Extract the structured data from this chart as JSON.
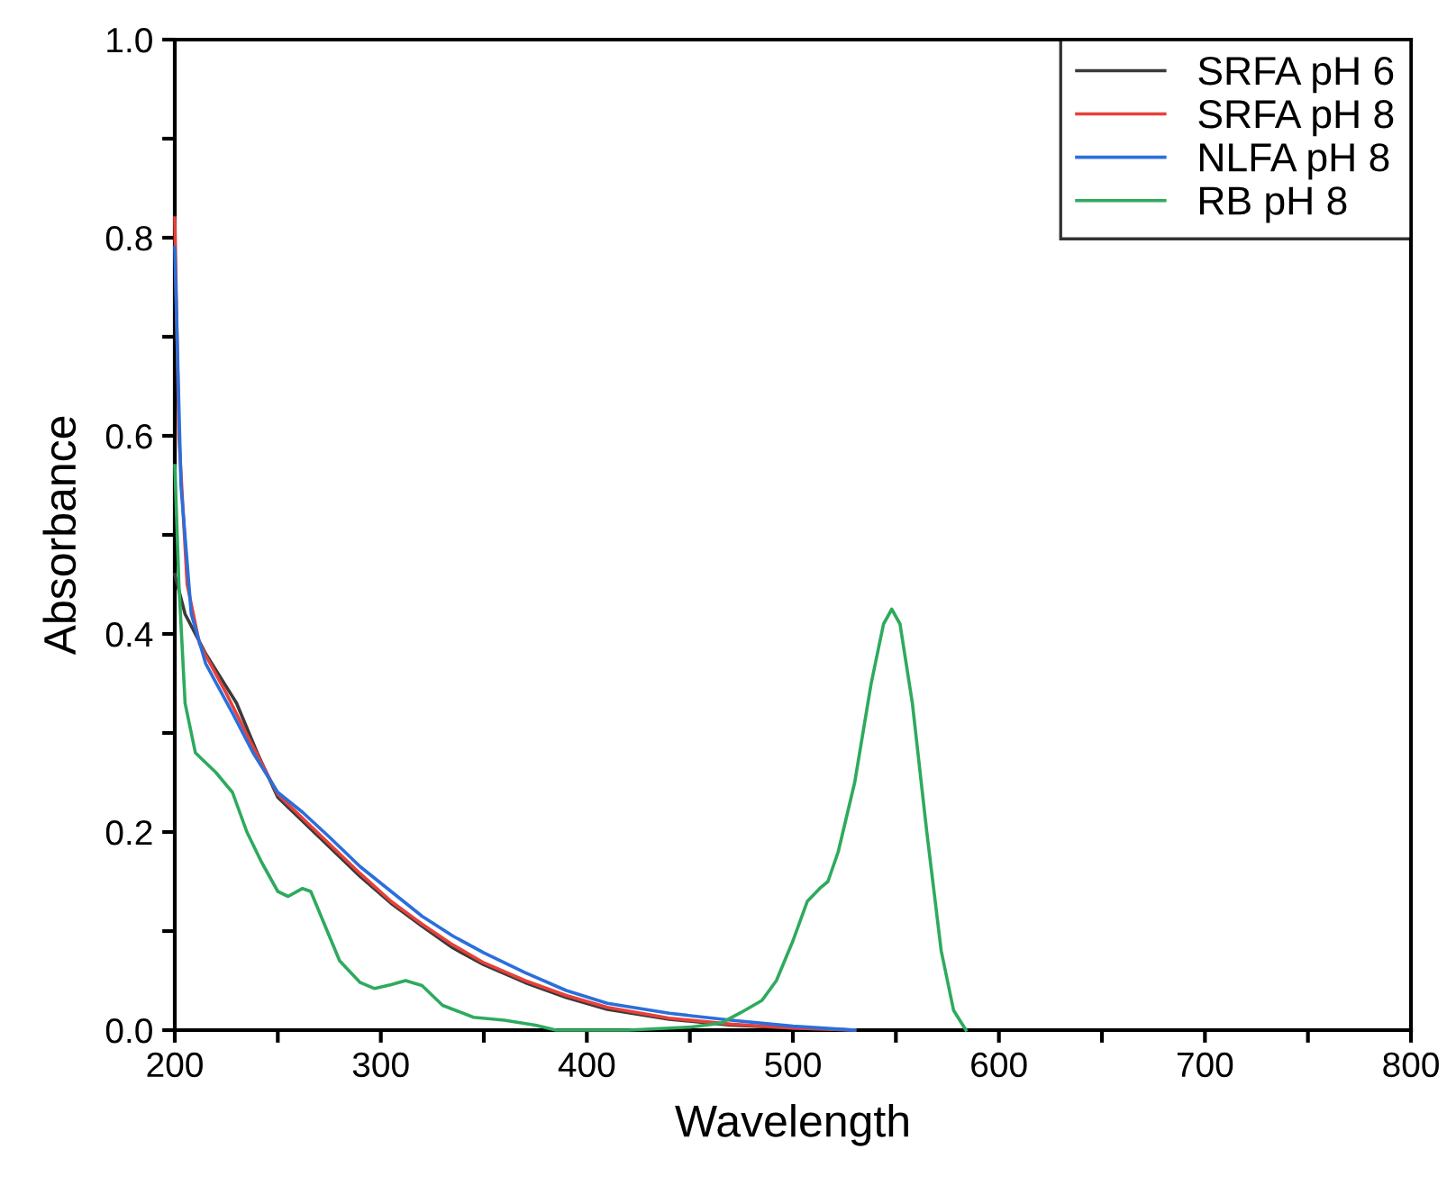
{
  "chart_data": {
    "type": "line",
    "xlabel": "Wavelength",
    "ylabel": "Absorbance",
    "xlim": [
      200,
      800
    ],
    "ylim": [
      0,
      1.0
    ],
    "xticks": [
      200,
      {
        "value": 250,
        "label": null
      },
      300,
      {
        "value": 350,
        "label": null
      },
      400,
      {
        "value": 450,
        "label": null
      },
      500,
      {
        "value": 550,
        "label": null
      },
      600,
      {
        "value": 650,
        "label": null
      },
      700,
      {
        "value": 750,
        "label": null
      },
      800
    ],
    "yticks": [
      {
        "value": 0,
        "label": "0.0"
      },
      {
        "value": 0.1,
        "label": null
      },
      0.2,
      {
        "value": 0.3,
        "label": null
      },
      0.4,
      {
        "value": 0.5,
        "label": null
      },
      0.6,
      {
        "value": 0.7,
        "label": null
      },
      0.8,
      {
        "value": 0.9,
        "label": null
      },
      {
        "value": 1.0,
        "label": "1.0"
      }
    ],
    "legend": "top right",
    "grid": false,
    "marker": "none",
    "line_style": "solid",
    "series": [
      {
        "name": "SRFA pH 6",
        "color": "#3a3a3a",
        "x": [
          200,
          205,
          215,
          230,
          240,
          250,
          260,
          275,
          290,
          305,
          320,
          335,
          350,
          370,
          390,
          410,
          440,
          470,
          500,
          530
        ],
        "values": [
          0.46,
          0.42,
          0.38,
          0.33,
          0.28,
          0.235,
          0.215,
          0.185,
          0.155,
          0.128,
          0.105,
          0.083,
          0.066,
          0.048,
          0.033,
          0.021,
          0.011,
          0.005,
          0.002,
          0
        ]
      },
      {
        "name": "SRFA pH 8",
        "color": "#e8403a",
        "x": [
          200,
          202,
          206,
          212,
          225,
          237,
          250,
          260,
          275,
          290,
          305,
          320,
          335,
          350,
          370,
          390,
          410,
          440,
          470,
          500,
          530
        ],
        "values": [
          0.82,
          0.6,
          0.45,
          0.39,
          0.34,
          0.29,
          0.238,
          0.218,
          0.188,
          0.158,
          0.13,
          0.107,
          0.086,
          0.068,
          0.05,
          0.035,
          0.023,
          0.012,
          0.006,
          0.002,
          0
        ]
      },
      {
        "name": "NLFA pH 8",
        "color": "#2a6fdb",
        "x": [
          200,
          203,
          208,
          215,
          228,
          238,
          250,
          262,
          275,
          290,
          305,
          320,
          335,
          350,
          370,
          390,
          410,
          440,
          470,
          500,
          530
        ],
        "values": [
          0.79,
          0.55,
          0.42,
          0.37,
          0.32,
          0.28,
          0.24,
          0.22,
          0.195,
          0.165,
          0.14,
          0.115,
          0.095,
          0.078,
          0.058,
          0.04,
          0.027,
          0.017,
          0.01,
          0.004,
          0
        ]
      },
      {
        "name": "RB pH 8",
        "color": "#2eaa5e",
        "x": [
          200,
          202,
          205,
          210,
          220,
          228,
          235,
          242,
          250,
          255,
          262,
          266,
          272,
          280,
          290,
          297,
          305,
          312,
          320,
          330,
          345,
          360,
          375,
          385,
          420,
          450,
          465,
          475,
          485,
          492,
          500,
          507,
          513,
          517,
          522,
          530,
          538,
          544,
          548,
          552,
          558,
          565,
          572,
          578,
          584
        ],
        "values": [
          0.57,
          0.45,
          0.33,
          0.28,
          0.26,
          0.24,
          0.2,
          0.17,
          0.14,
          0.135,
          0.143,
          0.14,
          0.11,
          0.07,
          0.048,
          0.042,
          0.046,
          0.05,
          0.045,
          0.025,
          0.013,
          0.01,
          0.005,
          0,
          0,
          0.003,
          0.007,
          0.018,
          0.03,
          0.05,
          0.09,
          0.13,
          0.143,
          0.15,
          0.18,
          0.25,
          0.35,
          0.41,
          0.425,
          0.41,
          0.33,
          0.2,
          0.08,
          0.02,
          0
        ]
      }
    ]
  }
}
